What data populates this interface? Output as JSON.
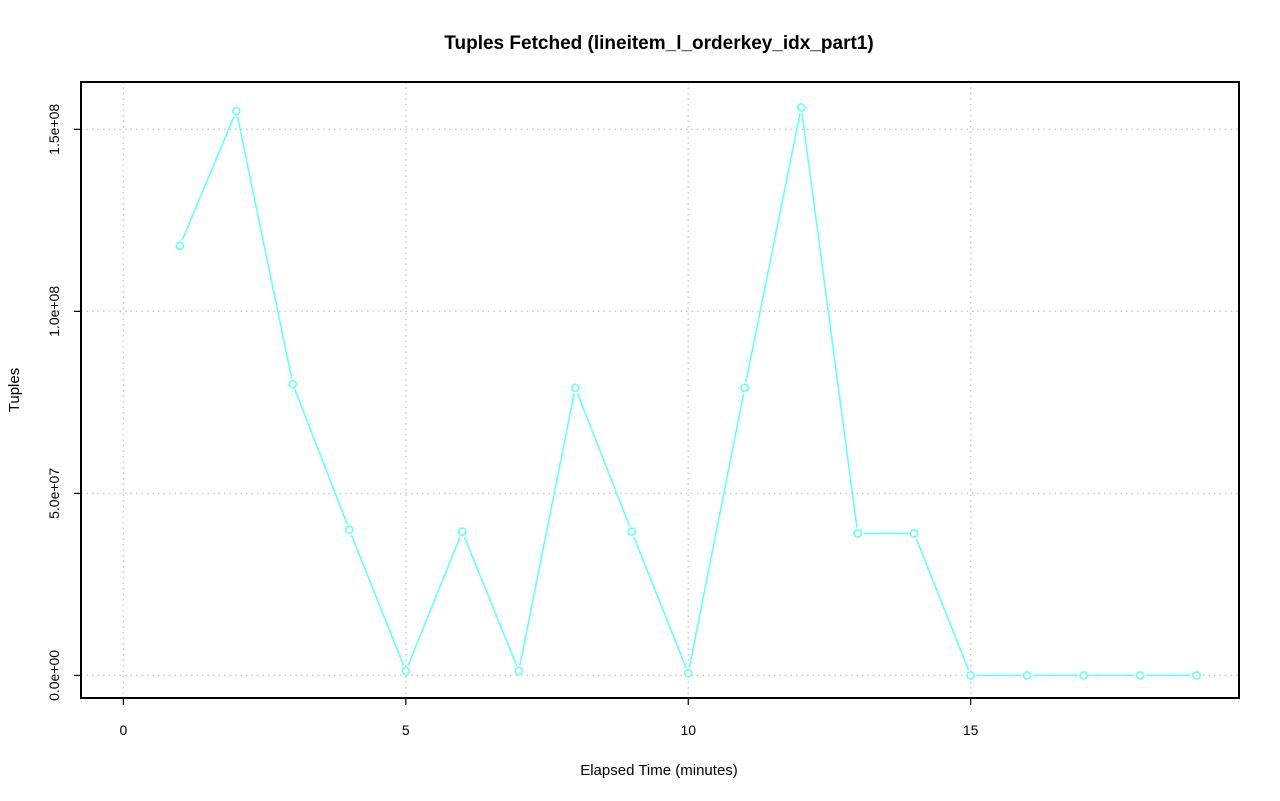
{
  "chart_data": {
    "type": "line",
    "title": "Tuples Fetched (lineitem_l_orderkey_idx_part1)",
    "xlabel": "Elapsed Time (minutes)",
    "ylabel": "Tuples",
    "xlim": [
      -0.75,
      19.75
    ],
    "ylim": [
      -6200000,
      163000000
    ],
    "x_ticks": [
      0,
      5,
      10,
      15
    ],
    "x_tick_labels": [
      "0",
      "5",
      "10",
      "15"
    ],
    "y_ticks": [
      0,
      50000000,
      100000000,
      150000000
    ],
    "y_tick_labels": [
      "0.0e+00",
      "5.0e+07",
      "1.0e+08",
      "1.5e+08"
    ],
    "grid": true,
    "color": "#66ffff",
    "x": [
      1,
      2,
      3,
      4,
      5,
      6,
      7,
      8,
      9,
      10,
      11,
      12,
      13,
      14,
      15,
      16,
      17,
      18,
      19
    ],
    "y": [
      118000000,
      155000000,
      80000000,
      40000000,
      1200000,
      39500000,
      1200000,
      79000000,
      39500000,
      600000,
      79000000,
      156000000,
      39000000,
      39000000,
      0,
      0,
      0,
      0,
      0
    ]
  }
}
